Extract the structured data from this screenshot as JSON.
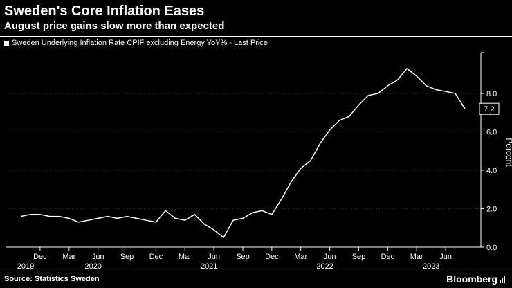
{
  "header": {
    "title": "Sweden's Core Inflation Eases",
    "subtitle": "August price gains slow more than expected",
    "legend": "Sweden Underlying Inflation Rate CPIF excluding Energy YoY% - Last Price"
  },
  "chart_data": {
    "type": "line",
    "title": "Sweden Underlying Inflation Rate CPIF excluding Energy YoY% - Last Price",
    "ylabel": "Percent",
    "ylim": [
      0,
      10
    ],
    "yticks": [
      0.0,
      2.0,
      4.0,
      6.0,
      8.0
    ],
    "grid": "horizontal-dotted",
    "legend_position": "top-left",
    "last_price": "7.2",
    "x": [
      "Oct 2019",
      "Nov 2019",
      "Dec 2019",
      "Jan 2020",
      "Feb 2020",
      "Mar 2020",
      "Apr 2020",
      "May 2020",
      "Jun 2020",
      "Jul 2020",
      "Aug 2020",
      "Sep 2020",
      "Oct 2020",
      "Nov 2020",
      "Dec 2020",
      "Jan 2021",
      "Feb 2021",
      "Mar 2021",
      "Apr 2021",
      "May 2021",
      "Jun 2021",
      "Jul 2021",
      "Aug 2021",
      "Sep 2021",
      "Oct 2021",
      "Nov 2021",
      "Dec 2021",
      "Jan 2022",
      "Feb 2022",
      "Mar 2022",
      "Apr 2022",
      "May 2022",
      "Jun 2022",
      "Jul 2022",
      "Aug 2022",
      "Sep 2022",
      "Oct 2022",
      "Nov 2022",
      "Dec 2022",
      "Jan 2023",
      "Feb 2023",
      "Mar 2023",
      "Apr 2023",
      "May 2023",
      "Jun 2023",
      "Jul 2023",
      "Aug 2023"
    ],
    "values": [
      1.6,
      1.7,
      1.7,
      1.6,
      1.6,
      1.5,
      1.3,
      1.4,
      1.5,
      1.6,
      1.5,
      1.6,
      1.5,
      1.4,
      1.3,
      1.9,
      1.5,
      1.4,
      1.7,
      1.2,
      0.9,
      0.5,
      1.4,
      1.5,
      1.8,
      1.9,
      1.7,
      2.5,
      3.4,
      4.1,
      4.5,
      5.4,
      6.1,
      6.6,
      6.8,
      7.4,
      7.9,
      8.0,
      8.4,
      8.7,
      9.3,
      8.9,
      8.4,
      8.2,
      8.1,
      8.0,
      7.2
    ],
    "x_ticks": [
      {
        "index": 2,
        "label": "Dec"
      },
      {
        "index": 5,
        "label": "Mar"
      },
      {
        "index": 8,
        "label": "Jun"
      },
      {
        "index": 11,
        "label": "Sep"
      },
      {
        "index": 14,
        "label": "Dec"
      },
      {
        "index": 17,
        "label": "Mar"
      },
      {
        "index": 20,
        "label": "Jun"
      },
      {
        "index": 23,
        "label": "Sep"
      },
      {
        "index": 26,
        "label": "Dec"
      },
      {
        "index": 29,
        "label": "Mar"
      },
      {
        "index": 32,
        "label": "Jun"
      },
      {
        "index": 35,
        "label": "Sep"
      },
      {
        "index": 38,
        "label": "Dec"
      },
      {
        "index": 41,
        "label": "Mar"
      },
      {
        "index": 44,
        "label": "Jun"
      }
    ],
    "year_labels": [
      {
        "index": 0.5,
        "label": "2019"
      },
      {
        "index": 7.5,
        "label": "2020"
      },
      {
        "index": 19.5,
        "label": "2021"
      },
      {
        "index": 31.5,
        "label": "2022"
      },
      {
        "index": 42.5,
        "label": "2023"
      }
    ],
    "line_color": "#ffffff",
    "grid_color": "#3a3a3a",
    "background_color": "#000000"
  },
  "footer": {
    "source": "Source: Statistics Sweden",
    "brand": "Bloomberg"
  }
}
